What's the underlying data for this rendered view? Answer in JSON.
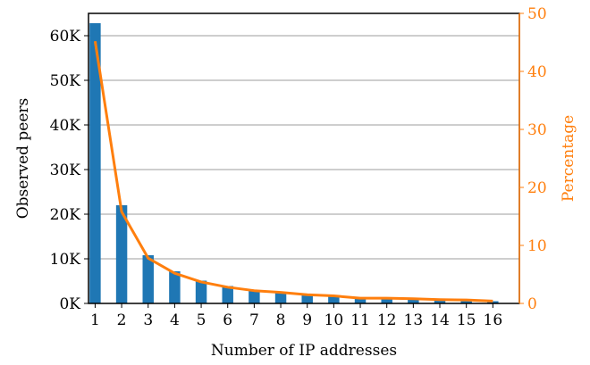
{
  "chart_data": {
    "type": "bar",
    "categories": [
      "1",
      "2",
      "3",
      "4",
      "5",
      "6",
      "7",
      "8",
      "9",
      "10",
      "11",
      "12",
      "13",
      "14",
      "15",
      "16"
    ],
    "xlabel": "Number of IP addresses",
    "ylabel": "Observed peers",
    "ylabel_right": "Percentage",
    "ylim": [
      0,
      65000
    ],
    "ylim_right": [
      0,
      50
    ],
    "yticks": [
      0,
      10000,
      20000,
      30000,
      40000,
      50000,
      60000
    ],
    "ytick_labels": [
      "0K",
      "10K",
      "20K",
      "30K",
      "40K",
      "50K",
      "60K"
    ],
    "yticks_right": [
      0,
      10,
      20,
      30,
      40,
      50
    ],
    "ytick_labels_right": [
      "0",
      "10",
      "20",
      "30",
      "40",
      "50"
    ],
    "grid": "horizontal",
    "series": [
      {
        "kind": "bar",
        "axis": "left",
        "color": "#1f77b4",
        "values": [
          62800,
          22000,
          10800,
          7200,
          5100,
          3900,
          3000,
          2600,
          2100,
          1800,
          1300,
          1300,
          1100,
          900,
          900,
          500
        ]
      },
      {
        "kind": "line",
        "axis": "right",
        "color": "#ff7f0e",
        "values": [
          45.2,
          15.8,
          7.8,
          5.2,
          3.7,
          2.8,
          2.2,
          1.9,
          1.5,
          1.3,
          0.9,
          0.9,
          0.8,
          0.65,
          0.6,
          0.4
        ]
      }
    ]
  }
}
